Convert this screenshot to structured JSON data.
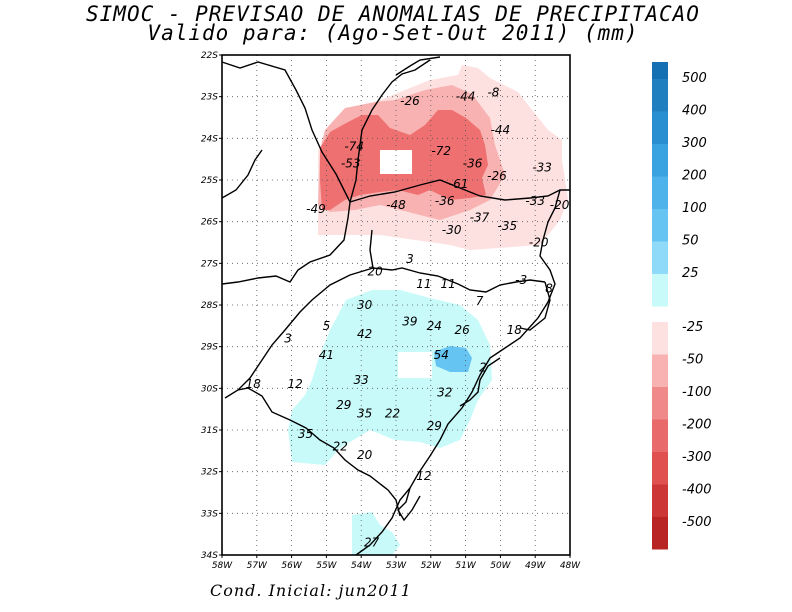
{
  "title": "SIMOC - PREVISAO DE ANOMALIAS DE PRECIPITACAO",
  "subtitle": "Valido para: (Ago-Set-Out 2011) (mm)",
  "footer": "Cond. Inicial: jun2011",
  "map": {
    "lat_labels": [
      "22S",
      "23S",
      "24S",
      "25S",
      "26S",
      "27S",
      "28S",
      "29S",
      "30S",
      "31S",
      "32S",
      "33S",
      "34S"
    ],
    "lon_labels": [
      "58W",
      "57W",
      "56W",
      "55W",
      "54W",
      "53W",
      "52W",
      "51W",
      "50W",
      "49W",
      "48W"
    ],
    "lon_range": [
      -58,
      -48
    ],
    "lat_range": [
      -34,
      -22
    ],
    "grid": "dotted",
    "values": [
      {
        "text": "-8",
        "lon": -50.2,
        "lat": -22.9
      },
      {
        "text": "-44",
        "lon": -51.0,
        "lat": -23.0
      },
      {
        "text": "-26",
        "lon": -52.6,
        "lat": -23.1
      },
      {
        "text": "-44",
        "lon": -50.0,
        "lat": -23.8
      },
      {
        "text": "-74",
        "lon": -54.2,
        "lat": -24.2
      },
      {
        "text": "-72",
        "lon": -51.7,
        "lat": -24.3
      },
      {
        "text": "-53",
        "lon": -54.3,
        "lat": -24.6
      },
      {
        "text": "-36",
        "lon": -50.8,
        "lat": -24.6
      },
      {
        "text": "-33",
        "lon": -48.8,
        "lat": -24.7
      },
      {
        "text": "-26",
        "lon": -50.1,
        "lat": -24.9
      },
      {
        "text": "-61",
        "lon": -51.2,
        "lat": -25.1
      },
      {
        "text": "-49",
        "lon": -55.3,
        "lat": -25.7
      },
      {
        "text": "-48",
        "lon": -53.0,
        "lat": -25.6
      },
      {
        "text": "-36",
        "lon": -51.6,
        "lat": -25.5
      },
      {
        "text": "-33",
        "lon": -49.0,
        "lat": -25.5
      },
      {
        "text": "-20",
        "lon": -48.3,
        "lat": -25.6
      },
      {
        "text": "-37",
        "lon": -50.6,
        "lat": -25.9
      },
      {
        "text": "-35",
        "lon": -49.8,
        "lat": -26.1
      },
      {
        "text": "-30",
        "lon": -51.4,
        "lat": -26.2
      },
      {
        "text": "-20",
        "lon": -48.9,
        "lat": -26.5
      },
      {
        "text": "3",
        "lon": -52.6,
        "lat": -26.9
      },
      {
        "text": "20",
        "lon": -53.6,
        "lat": -27.2
      },
      {
        "text": "11",
        "lon": -52.2,
        "lat": -27.5
      },
      {
        "text": "11",
        "lon": -51.5,
        "lat": -27.5
      },
      {
        "text": "-3",
        "lon": -49.4,
        "lat": -27.4
      },
      {
        "text": "8",
        "lon": -48.6,
        "lat": -27.6
      },
      {
        "text": "7",
        "lon": -50.6,
        "lat": -27.9
      },
      {
        "text": "30",
        "lon": -53.9,
        "lat": -28.0
      },
      {
        "text": "5",
        "lon": -55.0,
        "lat": -28.5
      },
      {
        "text": "39",
        "lon": -52.6,
        "lat": -28.4
      },
      {
        "text": "24",
        "lon": -51.9,
        "lat": -28.5
      },
      {
        "text": "26",
        "lon": -51.1,
        "lat": -28.6
      },
      {
        "text": "3",
        "lon": -56.1,
        "lat": -28.8
      },
      {
        "text": "42",
        "lon": -53.9,
        "lat": -28.7
      },
      {
        "text": "18",
        "lon": -49.6,
        "lat": -28.6
      },
      {
        "text": "41",
        "lon": -55.0,
        "lat": -29.2
      },
      {
        "text": "54",
        "lon": -51.7,
        "lat": -29.2
      },
      {
        "text": "2",
        "lon": -50.5,
        "lat": -29.5
      },
      {
        "text": "33",
        "lon": -54.0,
        "lat": -29.8
      },
      {
        "text": "12",
        "lon": -55.9,
        "lat": -29.9
      },
      {
        "text": "18",
        "lon": -57.1,
        "lat": -29.9
      },
      {
        "text": "32",
        "lon": -51.6,
        "lat": -30.1
      },
      {
        "text": "29",
        "lon": -54.5,
        "lat": -30.4
      },
      {
        "text": "35",
        "lon": -53.9,
        "lat": -30.6
      },
      {
        "text": "22",
        "lon": -53.1,
        "lat": -30.6
      },
      {
        "text": "29",
        "lon": -51.9,
        "lat": -30.9
      },
      {
        "text": "35",
        "lon": -55.6,
        "lat": -31.1
      },
      {
        "text": "22",
        "lon": -54.6,
        "lat": -31.4
      },
      {
        "text": "20",
        "lon": -53.9,
        "lat": -31.6
      },
      {
        "text": "12",
        "lon": -52.2,
        "lat": -32.1
      },
      {
        "text": "27",
        "lon": -53.7,
        "lat": -33.7
      }
    ]
  },
  "legend": {
    "positive": [
      {
        "label": "500",
        "color": "#1f7fbf"
      },
      {
        "label": "400",
        "color": "#2a8fd0"
      },
      {
        "label": "300",
        "color": "#39a2e0"
      },
      {
        "label": "200",
        "color": "#4db3ea"
      },
      {
        "label": "100",
        "color": "#66c4f2"
      },
      {
        "label": "50",
        "color": "#8fdaf8"
      },
      {
        "label": "25",
        "color": "#c8fafa"
      }
    ],
    "negative": [
      {
        "label": "-25",
        "color": "#fde1e1"
      },
      {
        "label": "-50",
        "color": "#f8b2b2"
      },
      {
        "label": "-100",
        "color": "#f08a8a"
      },
      {
        "label": "-200",
        "color": "#e96a6a"
      },
      {
        "label": "-300",
        "color": "#e05050"
      },
      {
        "label": "-400",
        "color": "#cc3636"
      },
      {
        "label": "-500",
        "color": "#b82424"
      }
    ],
    "top_color": "#1470b2"
  },
  "colors": {
    "light_pink": "#fde1e1",
    "pink": "#f8b2b2",
    "red": "#ef7070",
    "cyan": "#c8fafa",
    "blue": "#66c4f2"
  }
}
